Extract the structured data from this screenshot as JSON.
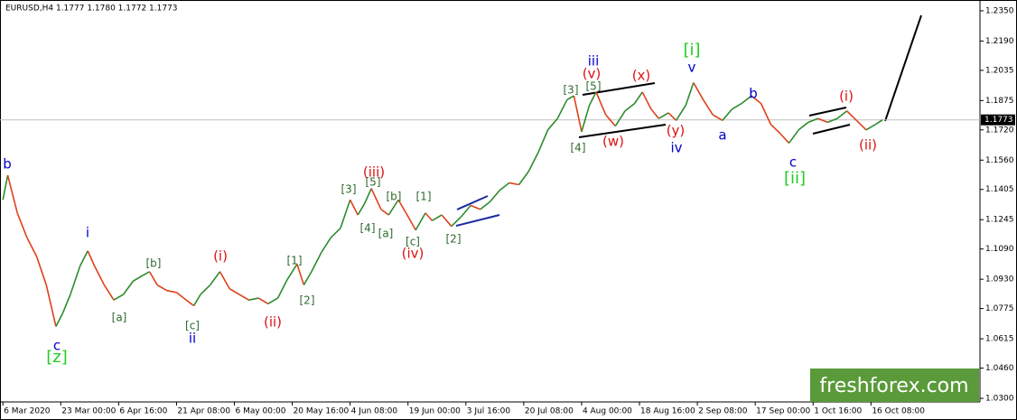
{
  "chart_data": {
    "type": "line",
    "title": "EURUSD,H4  1.1777 1.1780 1.1772 1.1773",
    "x": [
      0,
      5,
      15,
      25,
      35,
      45,
      55,
      62,
      70,
      80,
      88,
      95,
      105,
      115,
      125,
      135,
      145,
      152,
      160,
      170,
      180,
      190,
      198,
      205,
      215,
      225,
      235,
      245,
      255,
      265,
      275,
      285,
      295,
      305,
      312,
      320,
      330,
      340,
      350,
      360,
      368,
      375,
      382,
      392,
      400,
      410,
      418,
      428,
      438,
      445,
      455,
      465,
      475,
      485,
      495,
      505,
      515,
      525,
      535,
      545,
      555,
      565,
      575,
      585,
      592,
      600,
      608,
      615,
      625,
      635,
      645,
      655,
      663,
      672,
      680,
      690,
      698,
      708,
      716,
      726,
      736,
      746,
      756,
      766,
      776,
      786,
      796,
      806,
      815,
      825,
      835,
      845,
      855,
      865,
      875,
      885,
      895,
      905,
      912
    ],
    "values": [
      1.135,
      1.148,
      1.128,
      1.115,
      1.105,
      1.09,
      1.068,
      1.075,
      1.085,
      1.1,
      1.108,
      1.1,
      1.09,
      1.082,
      1.085,
      1.092,
      1.095,
      1.097,
      1.09,
      1.087,
      1.086,
      1.082,
      1.079,
      1.085,
      1.09,
      1.097,
      1.088,
      1.085,
      1.082,
      1.083,
      1.08,
      1.083,
      1.093,
      1.101,
      1.09,
      1.097,
      1.107,
      1.115,
      1.12,
      1.135,
      1.127,
      1.133,
      1.141,
      1.13,
      1.127,
      1.135,
      1.128,
      1.119,
      1.128,
      1.124,
      1.127,
      1.121,
      1.126,
      1.132,
      1.13,
      1.134,
      1.14,
      1.144,
      1.143,
      1.15,
      1.16,
      1.172,
      1.178,
      1.188,
      1.19,
      1.171,
      1.185,
      1.192,
      1.18,
      1.174,
      1.182,
      1.186,
      1.192,
      1.183,
      1.178,
      1.181,
      1.177,
      1.185,
      1.197,
      1.188,
      1.18,
      1.177,
      1.183,
      1.186,
      1.19,
      1.186,
      1.175,
      1.17,
      1.165,
      1.172,
      1.176,
      1.178,
      1.176,
      1.178,
      1.182,
      1.177,
      1.172,
      1.175,
      1.1773
    ],
    "up_color": "#2e8b2e",
    "down_color": "#e0401a",
    "xlim": [
      -3,
      1013
    ],
    "ylim": [
      1.0281,
      1.2407
    ],
    "xticks": [
      {
        "value": 0,
        "label": "6 Mar 2020"
      },
      {
        "value": 60,
        "label": "23 Mar 00:00"
      },
      {
        "value": 120,
        "label": "6 Apr 16:00"
      },
      {
        "value": 180,
        "label": "21 Apr 08:00"
      },
      {
        "value": 240,
        "label": "6 May 00:00"
      },
      {
        "value": 300,
        "label": "20 May 16:00"
      },
      {
        "value": 360,
        "label": "4 Jun 08:00"
      },
      {
        "value": 420,
        "label": "19 Jun 00:00"
      },
      {
        "value": 480,
        "label": "3 Jul 16:00"
      },
      {
        "value": 540,
        "label": "20 Jul 08:00"
      },
      {
        "value": 600,
        "label": "4 Aug 00:00"
      },
      {
        "value": 660,
        "label": "18 Aug 16:00"
      },
      {
        "value": 720,
        "label": "2 Sep 08:00"
      },
      {
        "value": 780,
        "label": "17 Sep 00:00"
      },
      {
        "value": 840,
        "label": "1 Oct 16:00"
      },
      {
        "value": 900,
        "label": "16 Oct 08:00"
      }
    ],
    "yticks": [
      {
        "value": 1.235,
        "label": "1.2350"
      },
      {
        "value": 1.219,
        "label": "1.2190"
      },
      {
        "value": 1.2035,
        "label": "1.2035"
      },
      {
        "value": 1.1875,
        "label": "1.1875"
      },
      {
        "value": 1.172,
        "label": "1.1720"
      },
      {
        "value": 1.156,
        "label": "1.1560"
      },
      {
        "value": 1.1405,
        "label": "1.1405"
      },
      {
        "value": 1.1245,
        "label": "1.1245"
      },
      {
        "value": 1.109,
        "label": "1.1090"
      },
      {
        "value": 1.093,
        "label": "1.0930"
      },
      {
        "value": 1.0775,
        "label": "1.0775"
      },
      {
        "value": 1.0615,
        "label": "1.0615"
      },
      {
        "value": 1.046,
        "label": "1.0460"
      },
      {
        "value": 1.03,
        "label": "1.0300"
      }
    ],
    "current_price": {
      "value": 1.1773,
      "label": "1.1773"
    },
    "annotations": [
      {
        "text": "b",
        "color": "#0000cc"
      },
      {
        "text": "c",
        "color": "#0000cc"
      },
      {
        "text": "[z]",
        "color": "#22cc22"
      },
      {
        "text": "i",
        "color": "#0000cc"
      },
      {
        "text": "[a]",
        "color": "#2e6b2e"
      },
      {
        "text": "[b]",
        "color": "#2e6b2e"
      },
      {
        "text": "[c]",
        "color": "#2e6b2e"
      },
      {
        "text": "ii",
        "color": "#0000cc"
      },
      {
        "text": "(i)",
        "color": "#dd1111"
      },
      {
        "text": "(ii)",
        "color": "#dd1111"
      },
      {
        "text": "[1]",
        "color": "#2e6b2e"
      },
      {
        "text": "[2]",
        "color": "#2e6b2e"
      },
      {
        "text": "[3]",
        "color": "#2e6b2e"
      },
      {
        "text": "[5]",
        "color": "#2e6b2e"
      },
      {
        "text": "(iii)",
        "color": "#dd1111"
      },
      {
        "text": "[4]",
        "color": "#2e6b2e"
      },
      {
        "text": "[b]",
        "color": "#2e6b2e"
      },
      {
        "text": "[a]",
        "color": "#2e6b2e"
      },
      {
        "text": "[1]",
        "color": "#2e6b2e"
      },
      {
        "text": "[c]",
        "color": "#2e6b2e"
      },
      {
        "text": "(iv)",
        "color": "#dd1111"
      },
      {
        "text": "[2]",
        "color": "#2e6b2e"
      },
      {
        "text": "[3]",
        "color": "#2e6b2e"
      },
      {
        "text": "[5]",
        "color": "#2e6b2e"
      },
      {
        "text": "iii",
        "color": "#0000cc"
      },
      {
        "text": "(v)",
        "color": "#dd1111"
      },
      {
        "text": "(x)",
        "color": "#dd1111"
      },
      {
        "text": "[4]",
        "color": "#2e6b2e"
      },
      {
        "text": "(w)",
        "color": "#dd1111"
      },
      {
        "text": "(y)",
        "color": "#dd1111"
      },
      {
        "text": "iv",
        "color": "#0000cc"
      },
      {
        "text": "[i]",
        "color": "#22cc22"
      },
      {
        "text": "v",
        "color": "#0000cc"
      },
      {
        "text": "a",
        "color": "#0000cc"
      },
      {
        "text": "b",
        "color": "#0000cc"
      },
      {
        "text": "c",
        "color": "#0000cc"
      },
      {
        "text": "[ii]",
        "color": "#22cc22"
      },
      {
        "text": "(i)",
        "color": "#dd1111"
      },
      {
        "text": "(ii)",
        "color": "#dd1111"
      }
    ],
    "watermark": "freshforex.com"
  }
}
